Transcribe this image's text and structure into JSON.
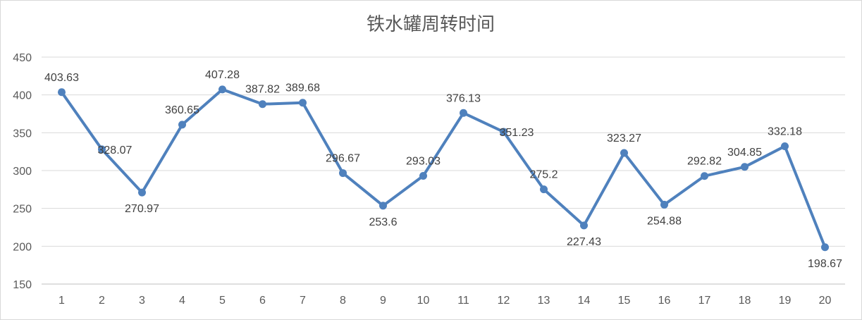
{
  "chart_data": {
    "type": "line",
    "title": "铁水罐周转时间",
    "xlabel": "",
    "ylabel": "",
    "x": [
      "1",
      "2",
      "3",
      "4",
      "5",
      "6",
      "7",
      "8",
      "9",
      "10",
      "11",
      "12",
      "13",
      "14",
      "15",
      "16",
      "17",
      "18",
      "19",
      "20"
    ],
    "series": [
      {
        "values": [
          403.63,
          328.07,
          270.97,
          360.65,
          407.28,
          387.82,
          389.68,
          296.67,
          253.6,
          293.03,
          376.13,
          351.23,
          275.2,
          227.43,
          323.27,
          254.88,
          292.82,
          304.85,
          332.18,
          198.67
        ],
        "labels": [
          "403.63",
          "328.07",
          "270.97",
          "360.65",
          "407.28",
          "387.82",
          "389.68",
          "296.67",
          "253.6",
          "293.03",
          "376.13",
          "351.23",
          "275.2",
          "227.43",
          "323.27",
          "254.88",
          "292.82",
          "304.85",
          "332.18",
          "198.67"
        ],
        "label_positions": [
          "above",
          "right",
          "below",
          "above",
          "above",
          "above",
          "above",
          "above",
          "below",
          "above",
          "above",
          "right",
          "above",
          "below",
          "above",
          "below",
          "above",
          "above",
          "above",
          "below"
        ]
      }
    ],
    "ylim": [
      150,
      450
    ],
    "yticks": [
      150,
      200,
      250,
      300,
      350,
      400,
      450
    ],
    "grid": true,
    "legend": "none",
    "colors": {
      "line": "#4f81bd",
      "marker": "#4f81bd",
      "grid": "#d9d9d9",
      "text": "#595959"
    }
  }
}
